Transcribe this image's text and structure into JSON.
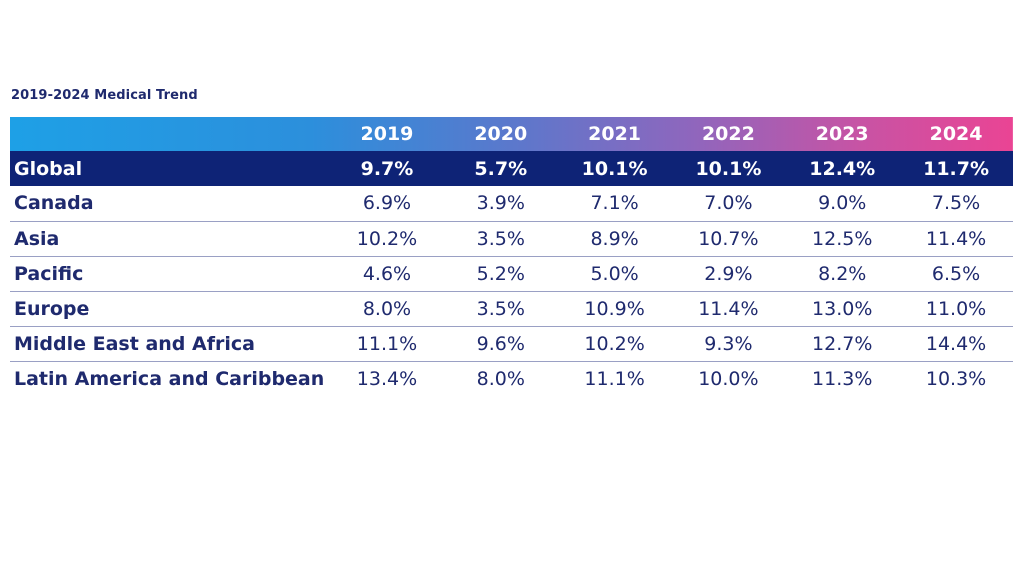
{
  "chart_data": {
    "type": "table",
    "title": "2019-2024 Medical Trend",
    "columns": [
      "2019",
      "2020",
      "2021",
      "2022",
      "2023",
      "2024"
    ],
    "rows": [
      {
        "region": "Global",
        "values": [
          "9.7%",
          "5.7%",
          "10.1%",
          "10.1%",
          "12.4%",
          "11.7%"
        ]
      },
      {
        "region": "Canada",
        "values": [
          "6.9%",
          "3.9%",
          "7.1%",
          "7.0%",
          "9.0%",
          "7.5%"
        ]
      },
      {
        "region": "Asia",
        "values": [
          "10.2%",
          "3.5%",
          "8.9%",
          "10.7%",
          "12.5%",
          "11.4%"
        ]
      },
      {
        "region": "Pacific",
        "values": [
          "4.6%",
          "5.2%",
          "5.0%",
          "2.9%",
          "8.2%",
          "6.5%"
        ]
      },
      {
        "region": "Europe",
        "values": [
          "8.0%",
          "3.5%",
          "10.9%",
          "11.4%",
          "13.0%",
          "11.0%"
        ]
      },
      {
        "region": "Middle East and Africa",
        "values": [
          "11.1%",
          "9.6%",
          "10.2%",
          "9.3%",
          "12.7%",
          "14.4%"
        ]
      },
      {
        "region": "Latin America and Caribbean",
        "values": [
          "13.4%",
          "8.0%",
          "11.1%",
          "10.0%",
          "11.3%",
          "10.3%"
        ]
      }
    ]
  },
  "colors": {
    "header_gradient_start": "#1ea0e6",
    "header_gradient_end": "#ea4494",
    "global_row_bg": "#0e2376",
    "text_navy": "#1f2a6e"
  }
}
